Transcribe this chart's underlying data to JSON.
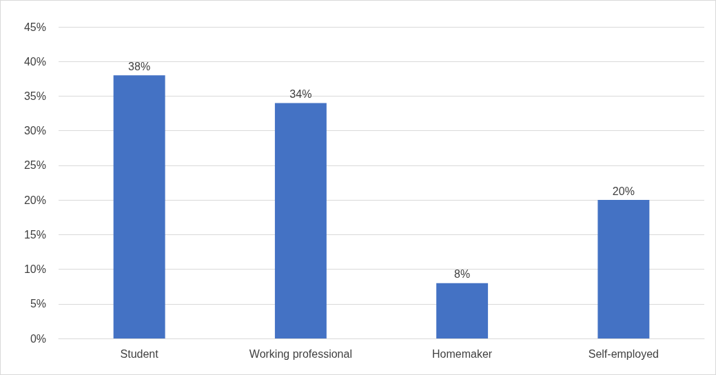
{
  "chart_data": {
    "type": "bar",
    "categories": [
      "Student",
      "Working professional",
      "Homemaker",
      "Self-employed"
    ],
    "values": [
      38,
      34,
      8,
      20
    ],
    "color": "#4472c4",
    "value_labels": [
      "38%",
      "34%",
      "8%",
      "20%"
    ],
    "ylim": [
      0,
      45
    ],
    "yticks": [
      {
        "value": 0,
        "label": "0%"
      },
      {
        "value": 5,
        "label": "5%"
      },
      {
        "value": 10,
        "label": "10%"
      },
      {
        "value": 15,
        "label": "15%"
      },
      {
        "value": 20,
        "label": "20%"
      },
      {
        "value": 25,
        "label": "25%"
      },
      {
        "value": 30,
        "label": "30%"
      },
      {
        "value": 35,
        "label": "35%"
      },
      {
        "value": 40,
        "label": "40%"
      },
      {
        "value": 45,
        "label": "45%"
      }
    ],
    "grid": "y"
  }
}
